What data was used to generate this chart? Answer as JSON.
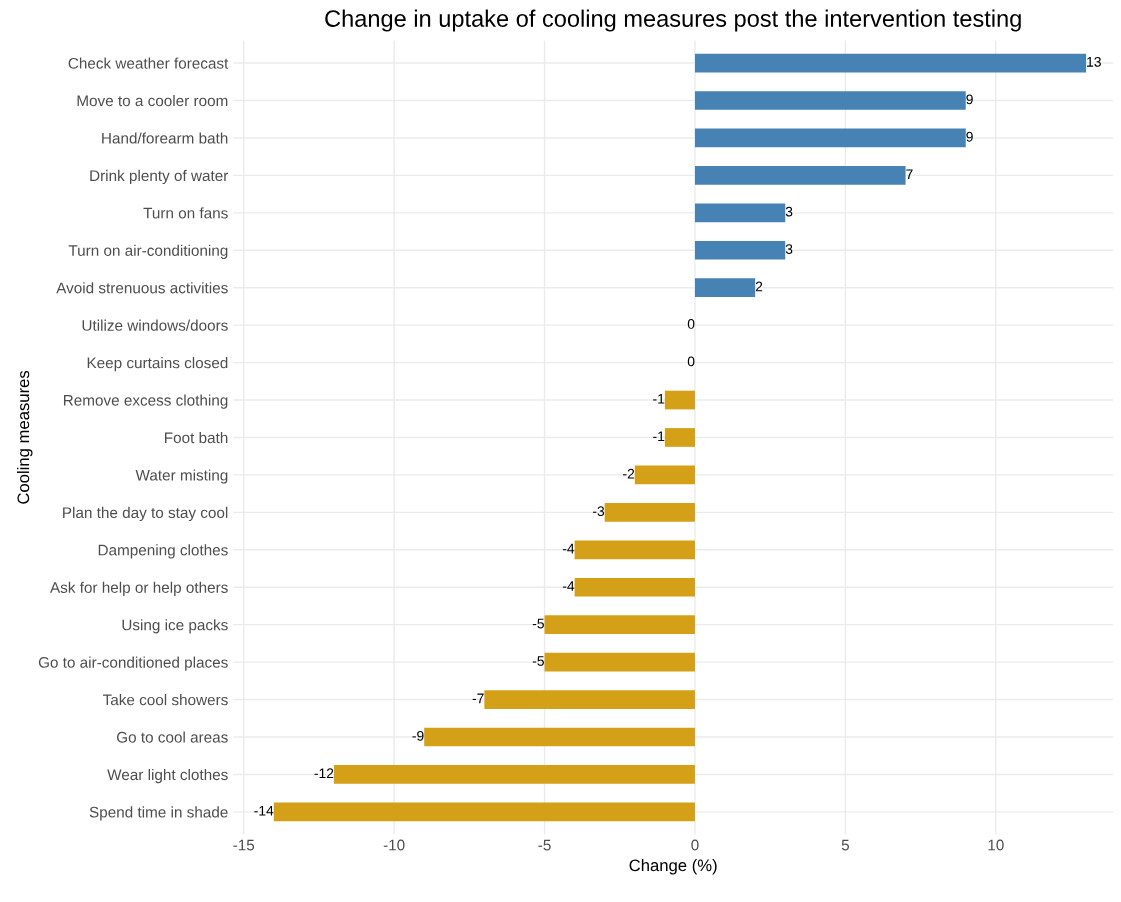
{
  "chart_data": {
    "type": "bar",
    "orientation": "horizontal",
    "title": "Change in uptake of cooling measures post the intervention testing",
    "xlabel": "Change (%)",
    "ylabel": "Cooling measures",
    "categories": [
      "Check weather forecast",
      "Move to a cooler room",
      "Hand/forearm bath",
      "Drink plenty of water",
      "Turn on fans",
      "Turn on air-conditioning",
      "Avoid strenuous activities",
      "Utilize windows/doors",
      "Keep curtains closed",
      "Remove excess clothing",
      "Foot bath",
      "Water misting",
      "Plan the day to stay cool",
      "Dampening clothes",
      "Ask for help or help others",
      "Using ice packs",
      "Go to air-conditioned places",
      "Take cool showers",
      "Go to cool areas",
      "Wear light clothes",
      "Spend time in shade"
    ],
    "values": [
      13,
      9,
      9,
      7,
      3,
      3,
      2,
      0,
      0,
      -1,
      -1,
      -2,
      -3,
      -4,
      -4,
      -5,
      -5,
      -7,
      -9,
      -12,
      -14
    ],
    "colors": [
      "#4682b4",
      "#4682b4",
      "#4682b4",
      "#4682b4",
      "#4682b4",
      "#4682b4",
      "#4682b4",
      "#d4a017",
      "#d4a017",
      "#d4a017",
      "#d4a017",
      "#d4a017",
      "#d4a017",
      "#d4a017",
      "#d4a017",
      "#d4a017",
      "#d4a017",
      "#d4a017",
      "#d4a017",
      "#d4a017",
      "#d4a017"
    ],
    "xlim": [
      -15.35,
      13.9
    ],
    "xticks": [
      -15,
      -10,
      -5,
      0,
      5,
      10
    ],
    "grid": true,
    "data_labels": true
  }
}
